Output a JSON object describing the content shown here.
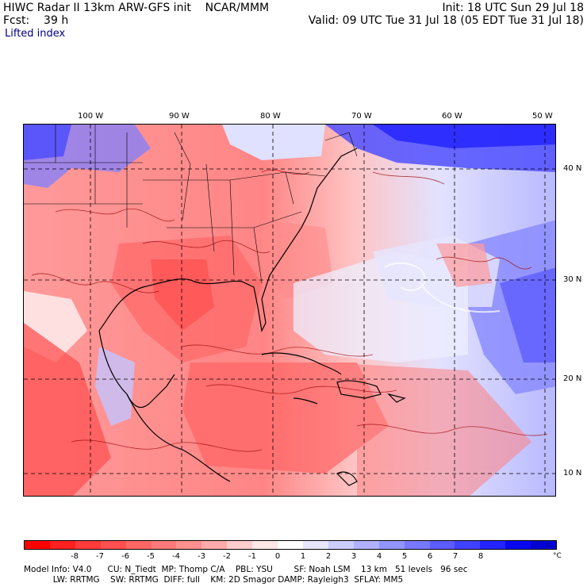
{
  "header": {
    "title_left": "HIWC Radar II 13km ARW-GFS init    NCAR/MMM",
    "forecast": "Fcst:    39 h",
    "field": "Lifted index",
    "init": "Init: 18 UTC Sun 29 Jul 18",
    "valid": "Valid: 09 UTC Tue 31 Jul 18 (05 EDT Tue 31 Jul 18)"
  },
  "map": {
    "lon_labels": [
      "100 W",
      "90 W",
      "80 W",
      "70 W",
      "60 W",
      "50 W"
    ],
    "lat_labels": [
      "40 N",
      "30 N",
      "20 N",
      "10 N"
    ]
  },
  "colorbar": {
    "colors": [
      "#ff0000",
      "#ff2020",
      "#ff3a3a",
      "#ff5050",
      "#ff6666",
      "#ff7a7a",
      "#ff9090",
      "#ffaaaa",
      "#ffcccc",
      "#ffe8e8",
      "#ffffff",
      "#e6e6ff",
      "#ccccff",
      "#b0b0ff",
      "#9494ff",
      "#7878ff",
      "#5c5cff",
      "#4040ff",
      "#2424ff",
      "#0808f0",
      "#0000d0"
    ],
    "labels": [
      "-8",
      "-7",
      "-6",
      "-5",
      "-4",
      "-3",
      "-2",
      "-1",
      "0",
      "1",
      "2",
      "3",
      "4",
      "5",
      "6",
      "7",
      "8"
    ],
    "unit": "°C"
  },
  "footer": {
    "line1": "Model Info: V4.0      CU: N_Tiedt  MP: Thomp C/A    PBL: YSU        SF: Noah LSM    13 km   51 levels   96 sec",
    "line2": "           LW: RRTMG    SW: RRTMG  DIFF: full    KM: 2D Smagor DAMP: Rayleigh3  SFLAY: MM5"
  }
}
